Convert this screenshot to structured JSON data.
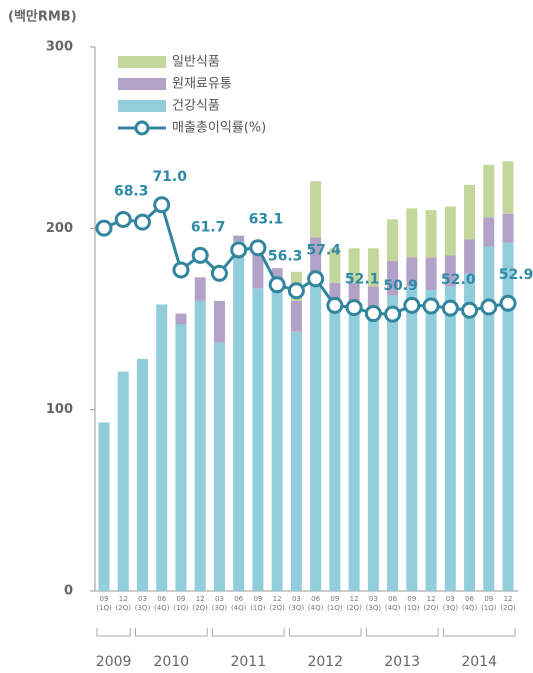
{
  "chart_data": {
    "type": "bar",
    "stacked": true,
    "y_label": "(백만RMB)",
    "categories": [
      "09",
      "12",
      "03",
      "06",
      "09",
      "12",
      "03",
      "06",
      "09",
      "12",
      "03",
      "06",
      "09",
      "12",
      "03",
      "06",
      "09",
      "12",
      "03",
      "06",
      "09",
      "12"
    ],
    "quarters": [
      "(1Q)",
      "(2Q)",
      "(3Q)",
      "(4Q)",
      "(1Q)",
      "(2Q)",
      "(3Q)",
      "(4Q)",
      "(1Q)",
      "(2Q)",
      "(3Q)",
      "(4Q)",
      "(1Q)",
      "(2Q)",
      "(3Q)",
      "(4Q)",
      "(1Q)",
      "(2Q)",
      "(3Q)",
      "(4Q)",
      "(1Q)",
      "(2Q)"
    ],
    "years": [
      "2009",
      "2010",
      "2011",
      "2012",
      "2013",
      "2014"
    ],
    "ylim": [
      0,
      300
    ],
    "yticks": [
      0,
      100,
      200,
      300
    ],
    "y2lim": [
      0,
      100
    ],
    "series": [
      {
        "name": "일반식품",
        "color": "#c3d69b",
        "values": [
          0,
          0,
          0,
          0,
          0,
          0,
          0,
          0,
          0,
          0,
          16,
          31,
          19,
          19,
          21,
          23,
          27,
          26,
          27,
          30,
          29,
          29
        ]
      },
      {
        "name": "원재료유통",
        "color": "#b3a2c7",
        "values": [
          0,
          0,
          0,
          0,
          6,
          13,
          23,
          3,
          21,
          8,
          17,
          27,
          10,
          12,
          18,
          19,
          16,
          18,
          17,
          19,
          16,
          16
        ]
      },
      {
        "name": "건강식품",
        "color": "#92cddc",
        "values": [
          93,
          121,
          128,
          158,
          147,
          160,
          137,
          193,
          167,
          170,
          143,
          168,
          160,
          158,
          150,
          163,
          168,
          166,
          168,
          175,
          190,
          192
        ]
      },
      {
        "name": "매출총이익률(%)",
        "type": "line",
        "axis": "y2",
        "color": "#31859c",
        "values": [
          66.7,
          68.3,
          67.8,
          71.0,
          59.0,
          61.7,
          58.4,
          62.7,
          63.1,
          56.3,
          55.2,
          57.4,
          52.5,
          52.1,
          51.0,
          50.9,
          52.5,
          52.4,
          52.0,
          51.6,
          52.2,
          52.9
        ],
        "value_labels": [
          null,
          "68.3",
          null,
          "71.0",
          null,
          "61.7",
          null,
          null,
          "63.1",
          "56.3",
          null,
          "57.4",
          null,
          "52.1",
          null,
          "50.9",
          null,
          null,
          "52.0",
          null,
          null,
          "52.9"
        ]
      }
    ]
  }
}
